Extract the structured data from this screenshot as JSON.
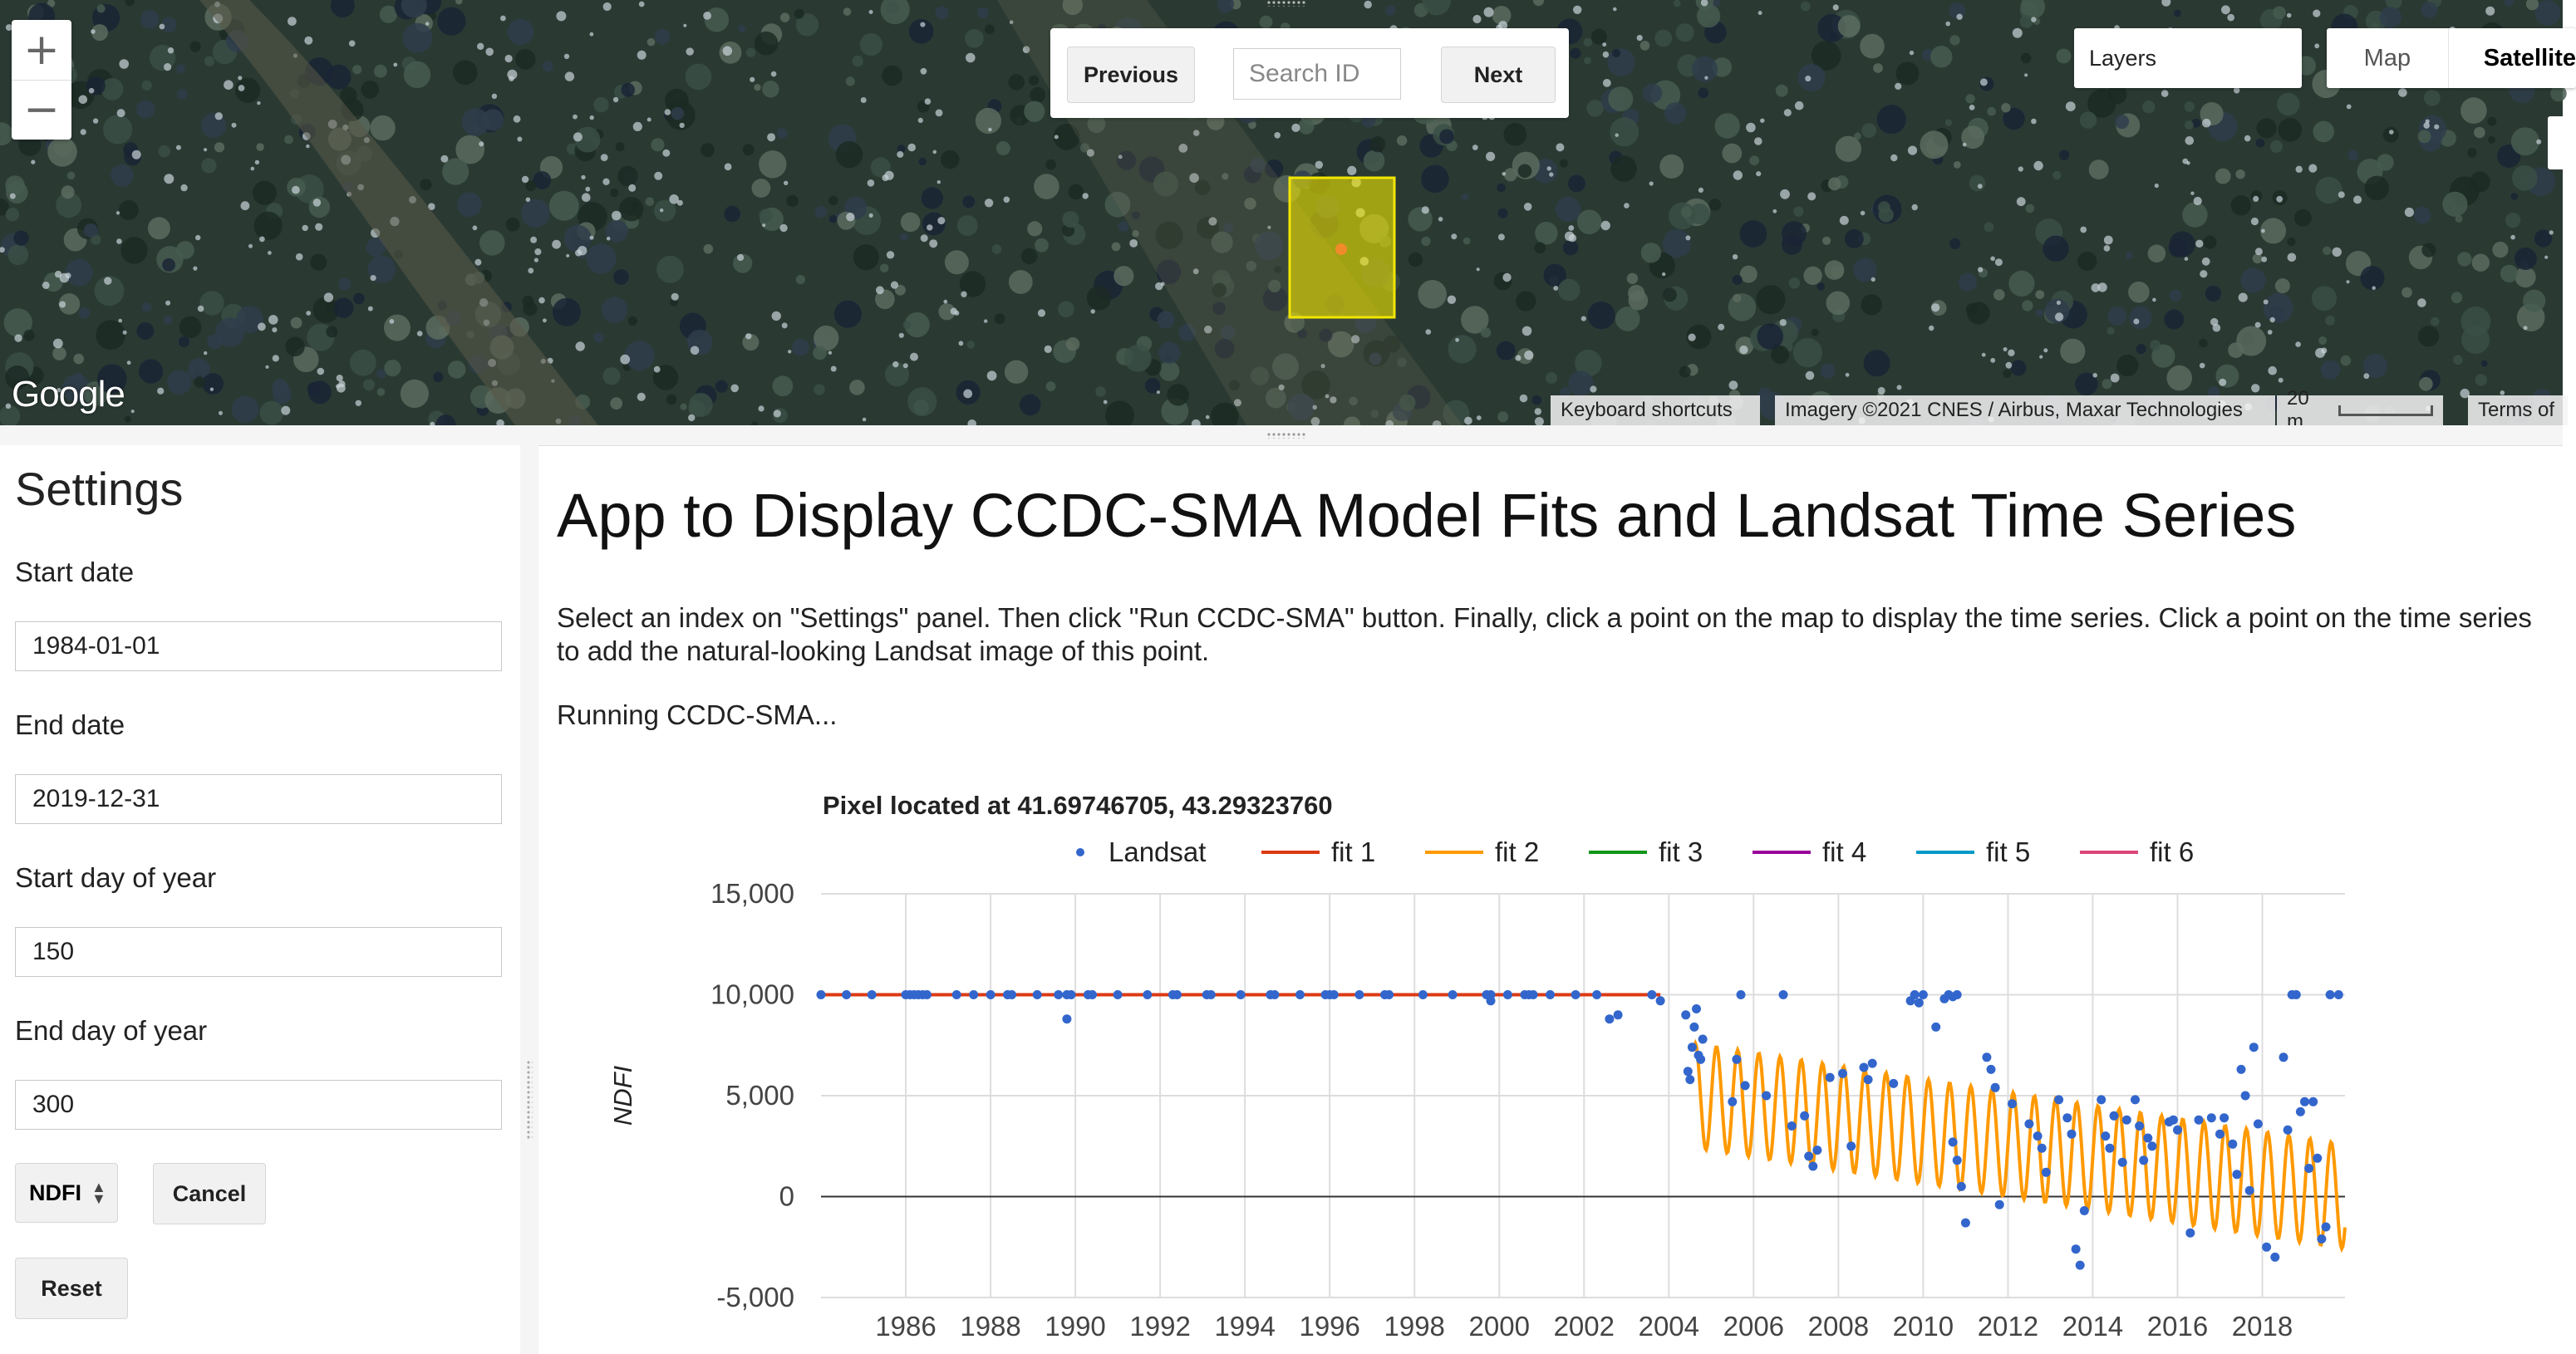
{
  "map": {
    "zoom_in": "+",
    "zoom_out": "−",
    "nav": {
      "previous": "Previous",
      "search_placeholder": "Search ID",
      "next": "Next"
    },
    "layers_label": "Layers",
    "map_type": {
      "map": "Map",
      "satellite": "Satellite"
    },
    "logo": "Google",
    "attribution": {
      "shortcuts": "Keyboard shortcuts",
      "imagery": "Imagery ©2021 CNES / Airbus, Maxar Technologies",
      "scale": "20 m",
      "terms": "Terms of"
    },
    "highlight_color": "#f2e600"
  },
  "settings": {
    "title": "Settings",
    "start_date_label": "Start date",
    "start_date": "1984-01-01",
    "end_date_label": "End date",
    "end_date": "2019-12-31",
    "start_doy_label": "Start day of year",
    "start_doy": "150",
    "end_doy_label": "End day of year",
    "end_doy": "300",
    "index": "NDFI",
    "cancel": "Cancel",
    "reset": "Reset"
  },
  "main": {
    "title": "App to Display CCDC-SMA Model Fits and Landsat Time Series",
    "description": "Select an index on \"Settings\" panel. Then click \"Run CCDC-SMA\" button. Finally, click a point on the map to display the time series. Click a point on the time series to add the natural-looking Landsat image of this point.",
    "status": "Running CCDC-SMA..."
  },
  "chart_data": {
    "type": "scatter",
    "title": "Pixel located at 41.69746705, 43.29323760",
    "ylabel": "NDFI",
    "xlabel": "",
    "xlim": [
      1984.0,
      2019.95
    ],
    "ylim": [
      -5000,
      15000
    ],
    "x_ticks": [
      1986,
      1988,
      1990,
      1992,
      1994,
      1996,
      1998,
      2000,
      2002,
      2004,
      2006,
      2008,
      2010,
      2012,
      2014,
      2016,
      2018
    ],
    "y_ticks": [
      -5000,
      0,
      5000,
      10000,
      15000
    ],
    "y_tick_labels": [
      "-5,000",
      "0",
      "5,000",
      "10,000",
      "15,000"
    ],
    "grid": true,
    "legend_position": "top",
    "legend": [
      {
        "name": "Landsat",
        "kind": "point",
        "color": "#3366cc"
      },
      {
        "name": "fit 1",
        "kind": "line",
        "color": "#dc3912"
      },
      {
        "name": "fit 2",
        "kind": "line",
        "color": "#ff9900"
      },
      {
        "name": "fit 3",
        "kind": "line",
        "color": "#109618"
      },
      {
        "name": "fit 4",
        "kind": "line",
        "color": "#990099"
      },
      {
        "name": "fit 5",
        "kind": "line",
        "color": "#0099c6"
      },
      {
        "name": "fit 6",
        "kind": "line",
        "color": "#dd4477"
      }
    ],
    "fits": [
      {
        "name": "fit 1",
        "start": 1984.0,
        "end": 2003.8,
        "mean": 10000,
        "amplitude": 0
      },
      {
        "name": "fit 2",
        "start": 2004.6,
        "end": 2019.95,
        "mean_start": 5000,
        "mean_end": 0,
        "amplitude": 2600,
        "cycles_per_year": 2
      }
    ],
    "landsat": [
      [
        1984.0,
        10000
      ],
      [
        1984.6,
        10000
      ],
      [
        1985.2,
        10000
      ],
      [
        1986.0,
        10000
      ],
      [
        1986.1,
        10000
      ],
      [
        1986.2,
        10000
      ],
      [
        1986.3,
        10000
      ],
      [
        1986.4,
        10000
      ],
      [
        1986.5,
        10000
      ],
      [
        1987.2,
        10000
      ],
      [
        1987.6,
        10000
      ],
      [
        1988.0,
        10000
      ],
      [
        1988.4,
        10000
      ],
      [
        1988.5,
        10000
      ],
      [
        1989.1,
        10000
      ],
      [
        1989.6,
        10000
      ],
      [
        1989.8,
        10000
      ],
      [
        1989.9,
        10000
      ],
      [
        1989.8,
        8800
      ],
      [
        1990.3,
        10000
      ],
      [
        1990.4,
        10000
      ],
      [
        1991.0,
        10000
      ],
      [
        1991.7,
        10000
      ],
      [
        1992.3,
        10000
      ],
      [
        1992.4,
        10000
      ],
      [
        1993.1,
        10000
      ],
      [
        1993.2,
        10000
      ],
      [
        1993.9,
        10000
      ],
      [
        1994.6,
        10000
      ],
      [
        1994.7,
        10000
      ],
      [
        1995.3,
        10000
      ],
      [
        1995.9,
        10000
      ],
      [
        1996.0,
        10000
      ],
      [
        1996.1,
        10000
      ],
      [
        1996.7,
        10000
      ],
      [
        1997.3,
        10000
      ],
      [
        1997.4,
        10000
      ],
      [
        1998.2,
        10000
      ],
      [
        1998.9,
        10000
      ],
      [
        1999.7,
        10000
      ],
      [
        1999.8,
        10000
      ],
      [
        1999.8,
        9700
      ],
      [
        2000.2,
        10000
      ],
      [
        2000.6,
        10000
      ],
      [
        2000.7,
        10000
      ],
      [
        2000.8,
        10000
      ],
      [
        2001.2,
        10000
      ],
      [
        2001.8,
        10000
      ],
      [
        2002.3,
        10000
      ],
      [
        2002.6,
        8800
      ],
      [
        2002.8,
        9000
      ],
      [
        2003.6,
        10000
      ],
      [
        2003.8,
        9700
      ],
      [
        2004.4,
        9000
      ],
      [
        2004.45,
        6200
      ],
      [
        2004.5,
        5800
      ],
      [
        2004.55,
        7400
      ],
      [
        2004.6,
        8400
      ],
      [
        2004.65,
        9300
      ],
      [
        2004.7,
        7000
      ],
      [
        2004.75,
        6800
      ],
      [
        2004.8,
        7800
      ],
      [
        2005.5,
        4700
      ],
      [
        2005.6,
        6800
      ],
      [
        2005.7,
        10000
      ],
      [
        2005.8,
        5500
      ],
      [
        2006.3,
        5000
      ],
      [
        2006.7,
        10000
      ],
      [
        2006.9,
        3500
      ],
      [
        2007.2,
        4000
      ],
      [
        2007.3,
        2000
      ],
      [
        2007.4,
        1500
      ],
      [
        2007.5,
        2300
      ],
      [
        2007.8,
        5900
      ],
      [
        2008.1,
        6100
      ],
      [
        2008.3,
        2500
      ],
      [
        2008.6,
        6400
      ],
      [
        2008.7,
        5800
      ],
      [
        2008.8,
        6600
      ],
      [
        2009.3,
        5600
      ],
      [
        2009.7,
        9700
      ],
      [
        2009.8,
        10000
      ],
      [
        2009.9,
        9600
      ],
      [
        2010.0,
        10000
      ],
      [
        2010.3,
        8400
      ],
      [
        2010.5,
        9800
      ],
      [
        2010.6,
        10000
      ],
      [
        2010.7,
        9900
      ],
      [
        2010.8,
        10000
      ],
      [
        2010.7,
        2700
      ],
      [
        2010.8,
        1800
      ],
      [
        2010.9,
        500
      ],
      [
        2011.0,
        -1300
      ],
      [
        2011.5,
        6900
      ],
      [
        2011.6,
        6300
      ],
      [
        2011.7,
        5400
      ],
      [
        2011.8,
        -400
      ],
      [
        2012.1,
        4600
      ],
      [
        2012.5,
        3600
      ],
      [
        2012.7,
        3000
      ],
      [
        2012.8,
        2400
      ],
      [
        2012.9,
        1200
      ],
      [
        2013.2,
        4800
      ],
      [
        2013.4,
        3900
      ],
      [
        2013.5,
        3100
      ],
      [
        2013.6,
        -2600
      ],
      [
        2013.7,
        -3400
      ],
      [
        2013.8,
        -700
      ],
      [
        2014.2,
        4800
      ],
      [
        2014.3,
        3000
      ],
      [
        2014.4,
        2400
      ],
      [
        2014.5,
        4000
      ],
      [
        2014.7,
        1700
      ],
      [
        2014.8,
        3800
      ],
      [
        2015.0,
        4800
      ],
      [
        2015.1,
        3500
      ],
      [
        2015.2,
        1800
      ],
      [
        2015.3,
        2900
      ],
      [
        2015.4,
        2500
      ],
      [
        2015.8,
        3700
      ],
      [
        2015.9,
        3800
      ],
      [
        2016.0,
        3300
      ],
      [
        2016.3,
        -1800
      ],
      [
        2016.5,
        3800
      ],
      [
        2016.8,
        3900
      ],
      [
        2017.0,
        3100
      ],
      [
        2017.1,
        3900
      ],
      [
        2017.3,
        2600
      ],
      [
        2017.4,
        1100
      ],
      [
        2017.5,
        6300
      ],
      [
        2017.6,
        5000
      ],
      [
        2017.7,
        300
      ],
      [
        2017.8,
        7400
      ],
      [
        2017.9,
        3600
      ],
      [
        2018.1,
        -2500
      ],
      [
        2018.3,
        -3000
      ],
      [
        2018.5,
        6900
      ],
      [
        2018.6,
        3300
      ],
      [
        2018.7,
        10000
      ],
      [
        2018.8,
        10000
      ],
      [
        2018.9,
        4200
      ],
      [
        2019.0,
        4700
      ],
      [
        2019.1,
        1400
      ],
      [
        2019.2,
        4700
      ],
      [
        2019.3,
        1900
      ],
      [
        2019.4,
        -2100
      ],
      [
        2019.5,
        -1500
      ],
      [
        2019.6,
        10000
      ],
      [
        2019.8,
        10000
      ]
    ]
  }
}
